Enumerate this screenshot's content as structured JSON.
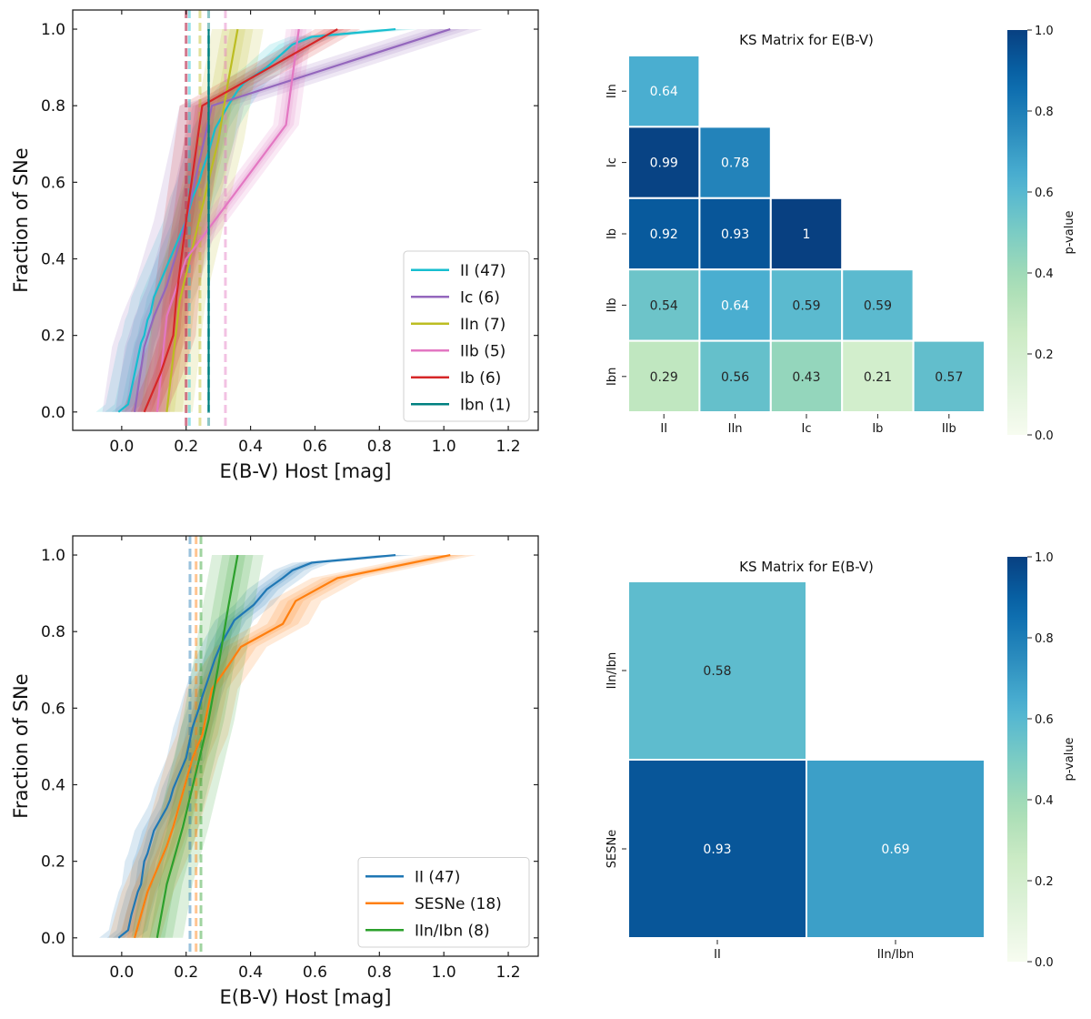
{
  "chart_data": [
    {
      "id": "cdf-top",
      "type": "line",
      "xlabel": "E(B-V) Host [mag]",
      "ylabel": "Fraction of SNe",
      "xlim": [
        -0.152,
        1.293
      ],
      "ylim": [
        -0.048,
        1.05
      ],
      "xticks": [
        0.0,
        0.2,
        0.4,
        0.6,
        0.8,
        1.0,
        1.2
      ],
      "xtick_labels": [
        "0.0",
        "0.2",
        "0.4",
        "0.6",
        "0.8",
        "1.0",
        "1.2"
      ],
      "yticks": [
        0.0,
        0.2,
        0.4,
        0.6,
        0.8,
        1.0
      ],
      "ytick_labels": [
        "0.0",
        "0.2",
        "0.4",
        "0.6",
        "0.8",
        "1.0"
      ],
      "legend_position": "lower-right",
      "series": [
        {
          "name": "II (47)",
          "color": "#17becf",
          "median": 0.21,
          "band": 0.07,
          "x": [
            -0.01,
            0.02,
            0.03,
            0.04,
            0.05,
            0.06,
            0.07,
            0.08,
            0.09,
            0.1,
            0.12,
            0.14,
            0.16,
            0.18,
            0.2,
            0.21,
            0.22,
            0.24,
            0.25,
            0.27,
            0.29,
            0.33,
            0.36,
            0.38,
            0.45,
            0.53,
            0.59,
            0.85
          ],
          "y": [
            0.0,
            0.02,
            0.06,
            0.1,
            0.14,
            0.18,
            0.2,
            0.24,
            0.26,
            0.3,
            0.34,
            0.38,
            0.42,
            0.46,
            0.5,
            0.53,
            0.56,
            0.6,
            0.63,
            0.68,
            0.74,
            0.8,
            0.84,
            0.86,
            0.9,
            0.96,
            0.98,
            1.0
          ]
        },
        {
          "name": "Ic (6)",
          "color": "#9467bd",
          "median": 0.2,
          "band": 0.1,
          "x": [
            0.04,
            0.07,
            0.1,
            0.14,
            0.2,
            0.28,
            1.02
          ],
          "y": [
            0.0,
            0.17,
            0.25,
            0.33,
            0.5,
            0.8,
            1.0
          ]
        },
        {
          "name": "IIn (7)",
          "color": "#bcbd22",
          "median": 0.243,
          "band": 0.08,
          "x": [
            0.14,
            0.18,
            0.22,
            0.26,
            0.3,
            0.33,
            0.36
          ],
          "y": [
            0.0,
            0.29,
            0.43,
            0.57,
            0.71,
            0.86,
            1.0
          ]
        },
        {
          "name": "IIb (5)",
          "color": "#e377c2",
          "median": 0.322,
          "band": 0.04,
          "x": [
            0.11,
            0.14,
            0.2,
            0.51,
            0.55
          ],
          "y": [
            0.0,
            0.25,
            0.4,
            0.75,
            1.0
          ]
        },
        {
          "name": "Ib (6)",
          "color": "#d62728",
          "median": 0.2,
          "band": 0.07,
          "x": [
            0.07,
            0.12,
            0.16,
            0.17,
            0.2,
            0.25,
            0.67
          ],
          "y": [
            0.0,
            0.1,
            0.2,
            0.3,
            0.5,
            0.8,
            1.0
          ]
        },
        {
          "name": "Ibn (1)",
          "color": "#008080",
          "median": 0.27,
          "band": 0.0,
          "x": [
            0.27,
            0.27
          ],
          "y": [
            0.0,
            1.0
          ]
        }
      ]
    },
    {
      "id": "heatmap-top",
      "type": "heatmap",
      "title": "KS Matrix for E(B-V)",
      "x_labels": [
        "II",
        "IIn",
        "Ic",
        "Ib",
        "IIb"
      ],
      "y_labels": [
        "IIn",
        "Ic",
        "Ib",
        "IIb",
        "Ibn"
      ],
      "values": [
        [
          0.64,
          null,
          null,
          null,
          null
        ],
        [
          0.99,
          0.78,
          null,
          null,
          null
        ],
        [
          0.92,
          0.93,
          1,
          null,
          null
        ],
        [
          0.54,
          0.64,
          0.59,
          0.59,
          null
        ],
        [
          0.29,
          0.56,
          0.43,
          0.21,
          0.57
        ]
      ],
      "colorbar": {
        "label": "p-value",
        "range": [
          0.0,
          1.0
        ],
        "ticks": [
          "0.0",
          "0.2",
          "0.4",
          "0.6",
          "0.8",
          "1.0"
        ],
        "colormap": "GnBu"
      }
    },
    {
      "id": "cdf-bottom",
      "type": "line",
      "xlabel": "E(B-V) Host [mag]",
      "ylabel": "Fraction of SNe",
      "xlim": [
        -0.152,
        1.293
      ],
      "ylim": [
        -0.048,
        1.05
      ],
      "xticks": [
        0.0,
        0.2,
        0.4,
        0.6,
        0.8,
        1.0,
        1.2
      ],
      "xtick_labels": [
        "0.0",
        "0.2",
        "0.4",
        "0.6",
        "0.8",
        "1.0",
        "1.2"
      ],
      "yticks": [
        0.0,
        0.2,
        0.4,
        0.6,
        0.8,
        1.0
      ],
      "ytick_labels": [
        "0.0",
        "0.2",
        "0.4",
        "0.6",
        "0.8",
        "1.0"
      ],
      "legend_position": "lower-right",
      "series": [
        {
          "name": "II (47)",
          "color": "#1f77b4",
          "median": 0.212,
          "band": 0.06,
          "x": [
            -0.01,
            0.02,
            0.03,
            0.04,
            0.05,
            0.06,
            0.065,
            0.07,
            0.08,
            0.09,
            0.1,
            0.12,
            0.14,
            0.15,
            0.16,
            0.18,
            0.2,
            0.21,
            0.22,
            0.24,
            0.25,
            0.27,
            0.29,
            0.31,
            0.33,
            0.35,
            0.38,
            0.41,
            0.45,
            0.5,
            0.53,
            0.59,
            0.85
          ],
          "y": [
            0.0,
            0.02,
            0.06,
            0.09,
            0.12,
            0.14,
            0.17,
            0.2,
            0.22,
            0.25,
            0.28,
            0.31,
            0.34,
            0.36,
            0.39,
            0.43,
            0.47,
            0.51,
            0.55,
            0.6,
            0.63,
            0.68,
            0.73,
            0.77,
            0.8,
            0.83,
            0.85,
            0.87,
            0.91,
            0.94,
            0.96,
            0.98,
            1.0
          ]
        },
        {
          "name": "SESNe (18)",
          "color": "#ff7f0e",
          "median": 0.231,
          "band": 0.08,
          "x": [
            0.04,
            0.06,
            0.08,
            0.11,
            0.14,
            0.16,
            0.18,
            0.2,
            0.22,
            0.25,
            0.28,
            0.33,
            0.37,
            0.5,
            0.54,
            0.67,
            1.02
          ],
          "y": [
            0.0,
            0.06,
            0.12,
            0.18,
            0.24,
            0.29,
            0.35,
            0.41,
            0.47,
            0.53,
            0.65,
            0.71,
            0.76,
            0.82,
            0.88,
            0.94,
            1.0
          ]
        },
        {
          "name": "IIn/Ibn (8)",
          "color": "#2ca02c",
          "median": 0.246,
          "band": 0.08,
          "x": [
            0.11,
            0.14,
            0.19,
            0.23,
            0.27,
            0.3,
            0.33,
            0.36
          ],
          "y": [
            0.0,
            0.14,
            0.29,
            0.43,
            0.57,
            0.71,
            0.86,
            1.0
          ]
        }
      ]
    },
    {
      "id": "heatmap-bottom",
      "type": "heatmap",
      "title": "KS Matrix for E(B-V)",
      "x_labels": [
        "II",
        "IIn/Ibn"
      ],
      "y_labels": [
        "IIn/Ibn",
        "SESNe"
      ],
      "values": [
        [
          0.58,
          null
        ],
        [
          0.93,
          0.69
        ]
      ],
      "colorbar": {
        "label": "p-value",
        "range": [
          0.0,
          1.0
        ],
        "ticks": [
          "0.0",
          "0.2",
          "0.4",
          "0.6",
          "0.8",
          "1.0"
        ],
        "colormap": "GnBu"
      }
    }
  ]
}
